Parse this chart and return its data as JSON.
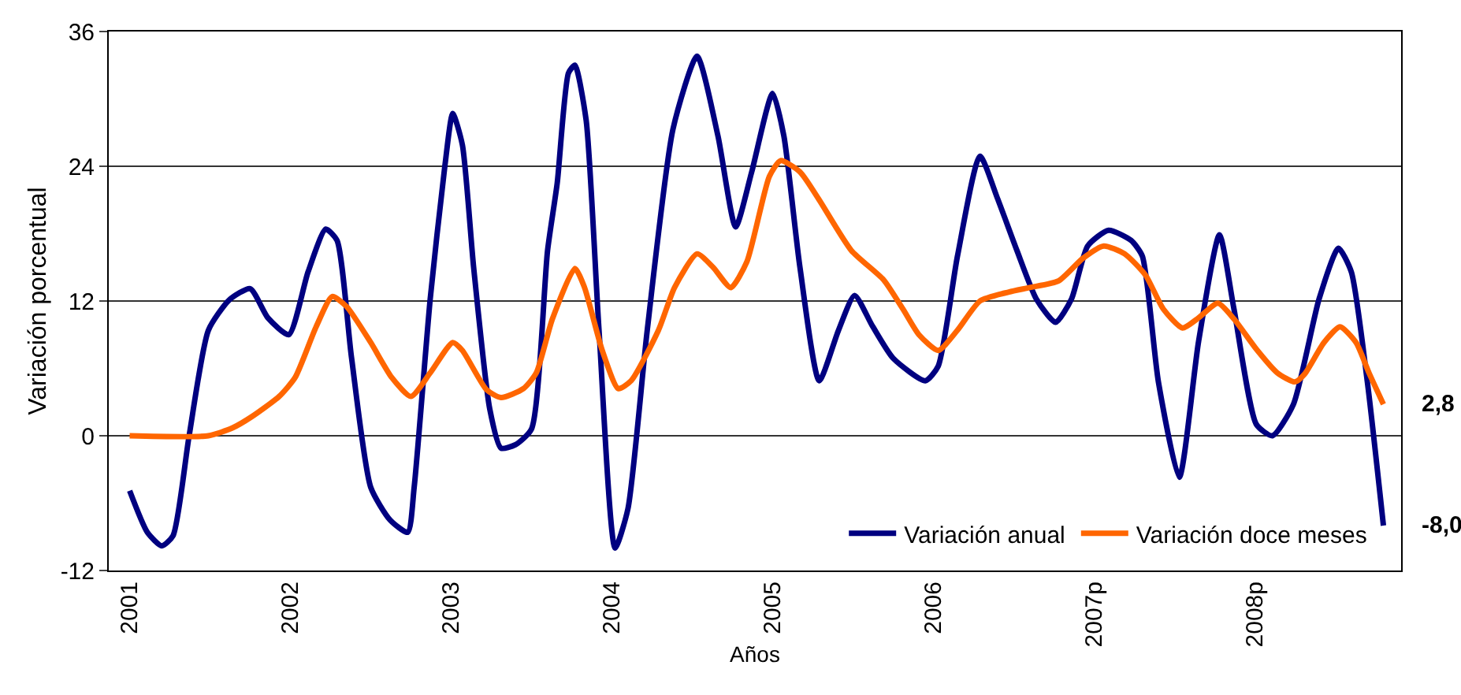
{
  "chart_data": {
    "type": "line",
    "xlabel": "Años",
    "ylabel": "Variación porcentual",
    "xlim": [
      2000.87,
      2008.91
    ],
    "ylim": [
      -12,
      36
    ],
    "xticks": [
      {
        "value": 2001,
        "label": "2001"
      },
      {
        "value": 2002,
        "label": "2002"
      },
      {
        "value": 2003,
        "label": "2003"
      },
      {
        "value": 2004,
        "label": "2004"
      },
      {
        "value": 2005,
        "label": "2005"
      },
      {
        "value": 2006,
        "label": "2006"
      },
      {
        "value": 2007,
        "label": "2007p"
      },
      {
        "value": 2008,
        "label": "2008p"
      }
    ],
    "yticks": [
      -12,
      0,
      12,
      24,
      36
    ],
    "grid": "y",
    "legend": "bottom right",
    "marker": "none",
    "line_style": "solid",
    "series": [
      {
        "name": "Variación anual",
        "color": "#000080",
        "x": [
          2001.0,
          2001.11,
          2001.2,
          2001.27,
          2001.37,
          2001.49,
          2001.62,
          2001.75,
          2001.86,
          2001.99,
          2002.11,
          2002.22,
          2002.29,
          2002.38,
          2002.5,
          2002.62,
          2002.73,
          2002.77,
          2002.87,
          2002.96,
          2003.01,
          2003.07,
          2003.14,
          2003.24,
          2003.31,
          2003.4,
          2003.5,
          2003.6,
          2003.66,
          2003.73,
          2003.77,
          2003.84,
          2003.92,
          2004.02,
          2004.1,
          2004.22,
          2004.38,
          2004.53,
          2004.66,
          2004.77,
          2004.87,
          2005.0,
          2005.07,
          2005.17,
          2005.29,
          2005.41,
          2005.51,
          2005.62,
          2005.75,
          2005.95,
          2006.03,
          2006.15,
          2006.29,
          2006.4,
          2006.52,
          2006.64,
          2006.76,
          2006.86,
          2006.96,
          2007.09,
          2007.23,
          2007.3,
          2007.4,
          2007.53,
          2007.65,
          2007.78,
          2007.87,
          2008.01,
          2008.11,
          2008.24,
          2008.4,
          2008.52,
          2008.6,
          2008.7,
          2008.8
        ],
        "values": [
          -4.9,
          -8.6,
          -9.8,
          -8.9,
          0,
          9.4,
          12.1,
          13.1,
          10.5,
          9.0,
          14.6,
          18.4,
          17.4,
          7.0,
          -4.6,
          -7.5,
          -8.6,
          -4.6,
          12.2,
          23.9,
          28.7,
          25.9,
          15.0,
          2.4,
          -1.1,
          -0.8,
          0.6,
          16.5,
          22.5,
          32.3,
          33.0,
          28.1,
          9.4,
          -10.0,
          -6.5,
          9.4,
          27.3,
          33.8,
          26.7,
          18.6,
          23.5,
          30.5,
          26.7,
          15.0,
          4.9,
          9.4,
          12.5,
          9.8,
          6.9,
          4.9,
          6.2,
          16.0,
          24.9,
          21.1,
          16.5,
          12.2,
          10.1,
          12.2,
          16.9,
          18.3,
          17.4,
          16.0,
          4.8,
          -3.7,
          8.4,
          17.9,
          11.3,
          1.0,
          0,
          2.8,
          12.2,
          16.7,
          14.6,
          4.8,
          -8.0
        ]
      },
      {
        "name": "Variación doce meses",
        "color": "#ff6600",
        "x": [
          2001.0,
          2001.49,
          2001.64,
          2001.76,
          2001.93,
          2002.03,
          2002.16,
          2002.26,
          2002.35,
          2002.5,
          2002.63,
          2002.75,
          2002.87,
          2003.01,
          2003.07,
          2003.22,
          2003.31,
          2003.45,
          2003.53,
          2003.63,
          2003.77,
          2003.83,
          2003.94,
          2004.04,
          2004.12,
          2004.29,
          2004.39,
          2004.53,
          2004.63,
          2004.74,
          2004.84,
          2004.98,
          2005.05,
          2005.17,
          2005.29,
          2005.49,
          2005.69,
          2005.81,
          2005.91,
          2006.03,
          2006.15,
          2006.29,
          2006.47,
          2006.6,
          2006.78,
          2006.93,
          2007.06,
          2007.19,
          2007.32,
          2007.43,
          2007.55,
          2007.65,
          2007.77,
          2007.87,
          2008.01,
          2008.14,
          2008.25,
          2008.31,
          2008.43,
          2008.53,
          2008.63,
          2008.71,
          2008.8
        ],
        "values": [
          0,
          0,
          0.7,
          1.7,
          3.5,
          5.2,
          9.7,
          12.4,
          11.5,
          8.3,
          5.2,
          3.5,
          5.6,
          8.3,
          7.6,
          4.1,
          3.4,
          4.2,
          5.6,
          10.4,
          14.9,
          13.2,
          7.6,
          4.2,
          4.9,
          9.4,
          13.2,
          16.2,
          15.0,
          13.2,
          15.5,
          23.1,
          24.5,
          23.5,
          21.0,
          16.5,
          13.9,
          11.3,
          9.0,
          7.6,
          9.4,
          12.0,
          12.8,
          13.2,
          13.8,
          15.8,
          16.9,
          16.2,
          14.3,
          11.3,
          9.6,
          10.5,
          11.8,
          10.4,
          7.7,
          5.6,
          4.8,
          5.5,
          8.3,
          9.7,
          8.3,
          5.6,
          2.8
        ]
      }
    ],
    "annotations": [
      {
        "text": "2,8",
        "x": 2008.8,
        "y": 2.8
      },
      {
        "text": "-8,0",
        "x": 2008.8,
        "y": -8.0
      }
    ]
  }
}
